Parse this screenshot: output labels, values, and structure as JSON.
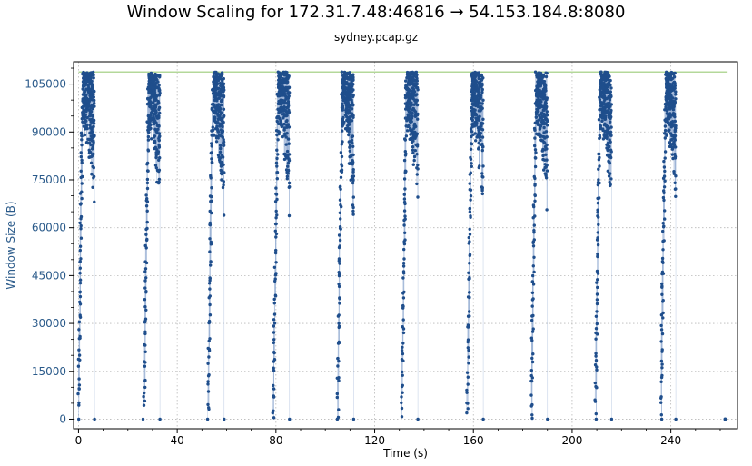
{
  "chart_data": {
    "type": "scatter",
    "title": "Window Scaling for 172.31.7.48:46816 → 54.153.184.8:8080",
    "subtitle": "sydney.pcap.gz",
    "xlabel": "Time (s)",
    "ylabel": "Window Size (B)",
    "xlim": [
      -2,
      267
    ],
    "ylim": [
      -3000,
      112000
    ],
    "xticks": [
      0,
      40,
      80,
      120,
      160,
      200,
      240
    ],
    "yticks": [
      0,
      15000,
      30000,
      45000,
      60000,
      75000,
      90000,
      105000
    ],
    "ytick_labels": [
      "0",
      "15000",
      "30000",
      "45000",
      "60000",
      "75000",
      "90000",
      "105000"
    ],
    "grid": true,
    "bursts": [
      {
        "start": 0,
        "peak": 1.8,
        "end": 6.5,
        "drop": 6.5
      },
      {
        "start": 26.5,
        "peak": 28.5,
        "end": 33,
        "drop": 33
      },
      {
        "start": 52.5,
        "peak": 54.5,
        "end": 59,
        "drop": 59
      },
      {
        "start": 79,
        "peak": 81,
        "end": 85.5,
        "drop": 85.5
      },
      {
        "start": 105,
        "peak": 107,
        "end": 111.5,
        "drop": 111.5
      },
      {
        "start": 131,
        "peak": 133,
        "end": 137.5,
        "drop": 137.5
      },
      {
        "start": 157.5,
        "peak": 159.5,
        "end": 164,
        "drop": 164
      },
      {
        "start": 183.5,
        "peak": 185.5,
        "end": 190,
        "drop": 190
      },
      {
        "start": 209.5,
        "peak": 211.5,
        "end": 216,
        "drop": 216
      },
      {
        "start": 236,
        "peak": 238,
        "end": 242,
        "drop": 242
      }
    ],
    "window_cap": 108800,
    "max_window_line": {
      "x_start": 0,
      "x_end": 263,
      "value": 108800,
      "color": "#b4d89a"
    },
    "final_point": {
      "x": 262,
      "y": 0
    },
    "colors": {
      "points": "#1f4e8c",
      "connector": "#9db3d6",
      "ylabel": "#2a5a8a"
    }
  }
}
